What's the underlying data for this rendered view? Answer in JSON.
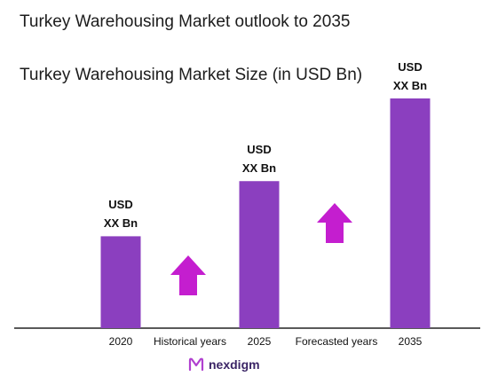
{
  "title": "Turkey Warehousing Market outlook to 2035",
  "chart_data": {
    "type": "bar",
    "title": "Turkey Warehousing Market Size (in USD Bn)",
    "categories": [
      "2020",
      "2025",
      "2035"
    ],
    "values": [
      1,
      1.6,
      2.5
    ],
    "value_labels": [
      [
        "USD",
        "XX Bn"
      ],
      [
        "USD",
        "XX Bn"
      ],
      [
        "USD",
        "XX Bn"
      ]
    ],
    "period_labels": [
      "Historical years",
      "Forecasted years"
    ],
    "bar_color": "#8b3fbf",
    "arrow_color": "#c41ecf",
    "grid": false
  },
  "brand": {
    "name": "nexdigm",
    "color": "#3b2566"
  }
}
